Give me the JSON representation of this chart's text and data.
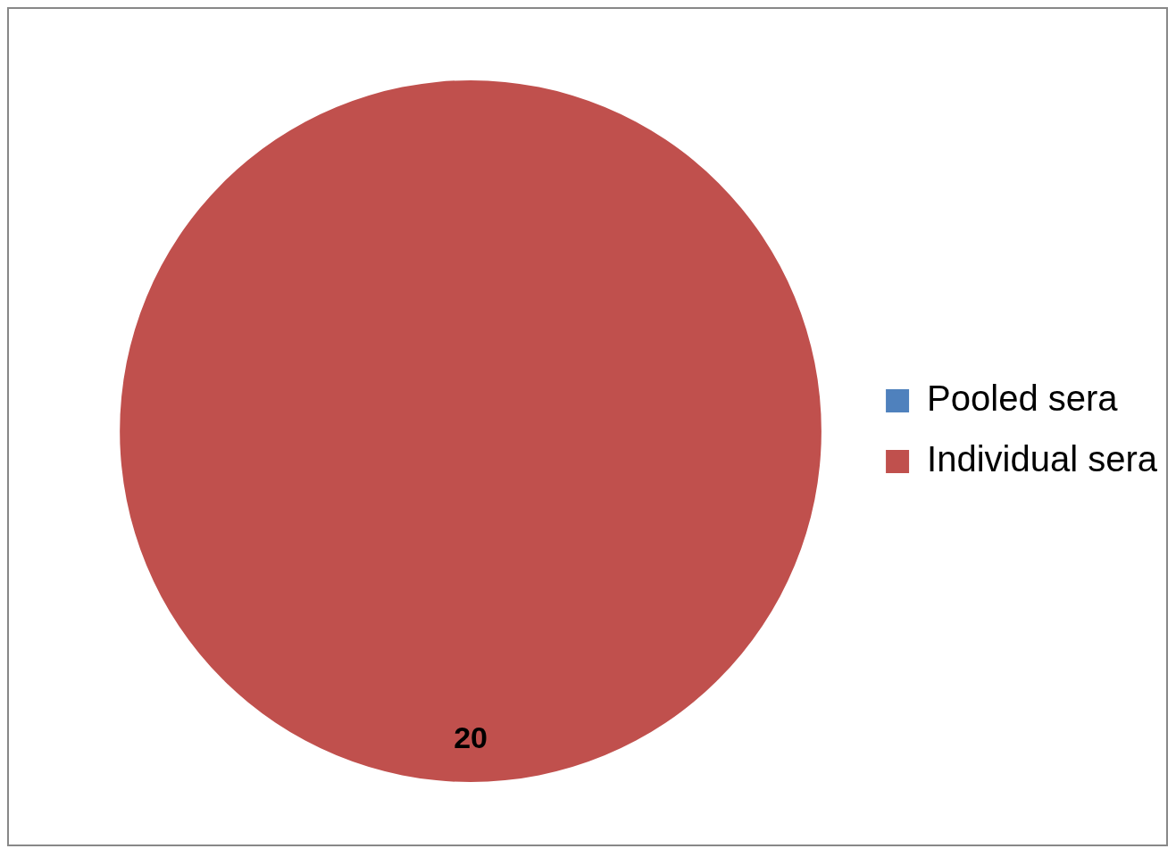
{
  "chart_data": {
    "type": "pie",
    "categories": [
      "Pooled sera",
      "Individual sera"
    ],
    "values": [
      0,
      20
    ],
    "colors": [
      "#4f81bd",
      "#c0504d"
    ],
    "value_labels": [
      null,
      "20"
    ],
    "legend": "right"
  }
}
